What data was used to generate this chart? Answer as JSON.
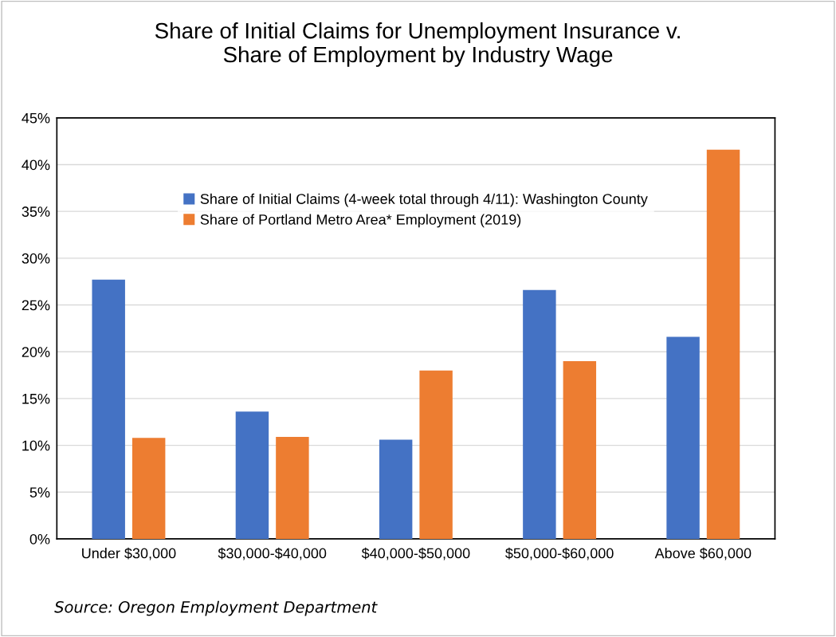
{
  "chart_data": {
    "type": "bar",
    "title": "Share of Initial Claims for Unemployment Insurance v.\nShare of Employment by Industry Wage",
    "categories": [
      "Under $30,000",
      "$30,000-$40,000",
      "$40,000-$50,000",
      "$50,000-$60,000",
      "Above $60,000"
    ],
    "series": [
      {
        "name": "Share of Initial Claims (4-week total through 4/11): Washington County",
        "color": "#4472c4",
        "values": [
          27.7,
          13.6,
          10.6,
          26.6,
          21.6
        ]
      },
      {
        "name": "Share of Portland Metro Area* Employment (2019)",
        "color": "#ed7d31",
        "values": [
          10.8,
          10.9,
          18.0,
          19.0,
          41.6
        ]
      }
    ],
    "ylim": [
      0,
      45
    ],
    "yticks": [
      {
        "value": 0,
        "label": "0%"
      },
      {
        "value": 5,
        "label": "5%"
      },
      {
        "value": 10,
        "label": "10%"
      },
      {
        "value": 15,
        "label": "15%"
      },
      {
        "value": 20,
        "label": "20%"
      },
      {
        "value": 25,
        "label": "25%"
      },
      {
        "value": 30,
        "label": "30%"
      },
      {
        "value": 35,
        "label": "35%"
      },
      {
        "value": 40,
        "label": "40%"
      },
      {
        "value": 45,
        "label": "45%"
      }
    ],
    "grid": "y",
    "legend": "top",
    "annotations": [
      "Source: Oregon Employment Department"
    ]
  }
}
